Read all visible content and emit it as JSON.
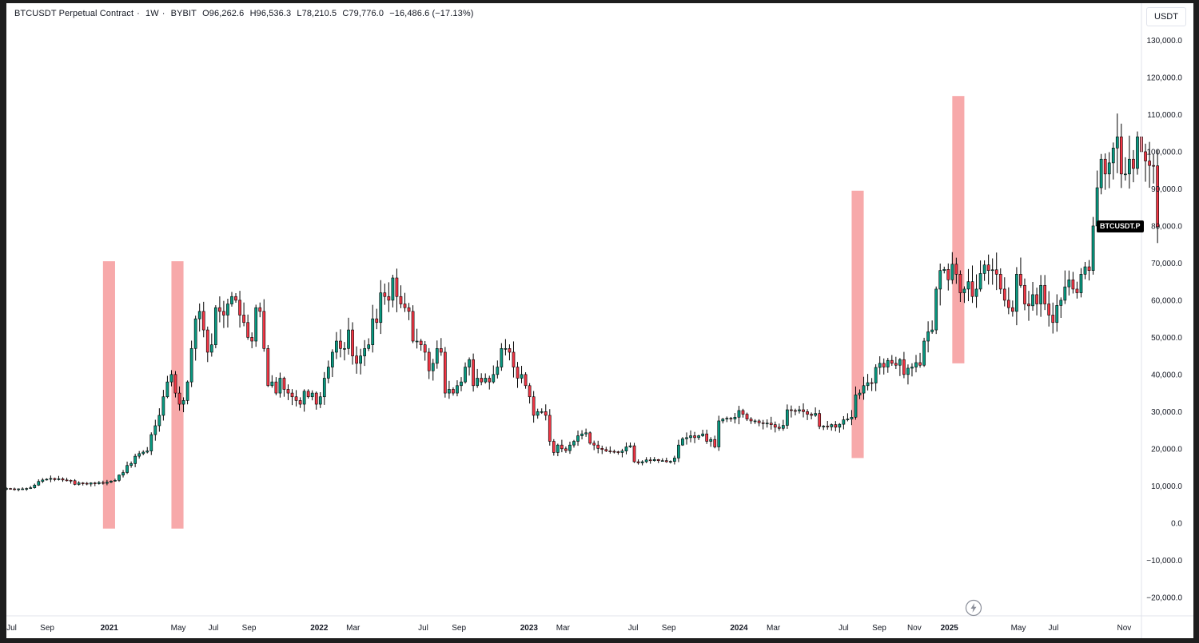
{
  "header": {
    "symbol": "BTCUSDT Perpetual Contract",
    "interval": "1W",
    "exchange": "BYBIT",
    "open": "O96,262.6",
    "high": "H96,536.3",
    "low": "L78,210.5",
    "close": "C79,776.0",
    "change": "−16,486.6 (−17.13%)"
  },
  "currency_button": "USDT",
  "price_tag": {
    "label": "BTCUSDT.P",
    "value": 79776
  },
  "colors": {
    "up": "#089981",
    "down": "#f23645",
    "candle_up_fill": "#089981",
    "candle_down_fill": "#f23645",
    "highlight": "#f7a9aa",
    "grid": "#e0e3eb"
  },
  "icons": {
    "bolt": "lightning-bolt-icon"
  },
  "chart_data": {
    "type": "candlestick",
    "title": "",
    "xlabel": "",
    "ylabel": "",
    "ylim": [
      -25000,
      140000
    ],
    "grid": false,
    "y_ticks": [
      "130,000.0",
      "120,000.0",
      "110,000.0",
      "100,000.0",
      "90,000.0",
      "80,000.0",
      "70,000.0",
      "60,000.0",
      "50,000.0",
      "40,000.0",
      "30,000.0",
      "20,000.0",
      "10,000.0",
      "0.0",
      "−10,000.0",
      "−20,000.0"
    ],
    "y_tick_values": [
      130000,
      120000,
      110000,
      100000,
      90000,
      80000,
      70000,
      60000,
      50000,
      40000,
      30000,
      20000,
      10000,
      0,
      -10000,
      -20000
    ],
    "x_start": "2020-07-06",
    "x_end": "2025-12-01",
    "x_ticks": [
      {
        "label": "Jul",
        "date": "2020-07-15",
        "bold": false
      },
      {
        "label": "Sep",
        "date": "2020-09-15",
        "bold": false
      },
      {
        "label": "2021",
        "date": "2021-01-01",
        "bold": true
      },
      {
        "label": "May",
        "date": "2021-05-01",
        "bold": false
      },
      {
        "label": "Jul",
        "date": "2021-07-01",
        "bold": false
      },
      {
        "label": "Sep",
        "date": "2021-09-01",
        "bold": false
      },
      {
        "label": "2022",
        "date": "2022-01-01",
        "bold": true
      },
      {
        "label": "Mar",
        "date": "2022-03-01",
        "bold": false
      },
      {
        "label": "Jul",
        "date": "2022-07-01",
        "bold": false
      },
      {
        "label": "Sep",
        "date": "2022-09-01",
        "bold": false
      },
      {
        "label": "2023",
        "date": "2023-01-01",
        "bold": true
      },
      {
        "label": "Mar",
        "date": "2023-03-01",
        "bold": false
      },
      {
        "label": "Jul",
        "date": "2023-07-01",
        "bold": false
      },
      {
        "label": "Sep",
        "date": "2023-09-01",
        "bold": false
      },
      {
        "label": "2024",
        "date": "2024-01-01",
        "bold": true
      },
      {
        "label": "Mar",
        "date": "2024-03-01",
        "bold": false
      },
      {
        "label": "Jul",
        "date": "2024-07-01",
        "bold": false
      },
      {
        "label": "Sep",
        "date": "2024-09-01",
        "bold": false
      },
      {
        "label": "Nov",
        "date": "2024-11-01",
        "bold": false
      },
      {
        "label": "2025",
        "date": "2025-01-01",
        "bold": true
      },
      {
        "label": "May",
        "date": "2025-05-01",
        "bold": false
      },
      {
        "label": "Jul",
        "date": "2025-07-01",
        "bold": false
      },
      {
        "label": "Nov",
        "date": "2025-11-01",
        "bold": false
      }
    ],
    "highlight_zones": [
      {
        "start": "2020-12-21",
        "end": "2021-01-11",
        "low": -1500,
        "high": 70500
      },
      {
        "start": "2021-04-19",
        "end": "2021-05-10",
        "low": -1500,
        "high": 70500
      },
      {
        "start": "2024-07-15",
        "end": "2024-08-05",
        "low": 17500,
        "high": 89500
      },
      {
        "start": "2025-01-06",
        "end": "2025-01-27",
        "low": 43000,
        "high": 115000
      }
    ],
    "series": [
      {
        "name": "BTCUSDT Perpetual Contract",
        "start_date": "2020-07-06",
        "closes": [
          9300,
          9200,
          9100,
          9200,
          9200,
          9300,
          9500,
          10200,
          11200,
          11600,
          11800,
          12000,
          11700,
          11900,
          11600,
          11500,
          11400,
          10400,
          10800,
          10700,
          10500,
          10800,
          10600,
          10900,
          10700,
          11000,
          11300,
          11500,
          12900,
          13600,
          15500,
          16000,
          18000,
          18700,
          19100,
          19400,
          23800,
          26200,
          29000,
          34000,
          38000,
          40000,
          35000,
          32000,
          33000,
          38000,
          47000,
          55000,
          57000,
          52000,
          46000,
          48000,
          58000,
          57000,
          56000,
          59000,
          61000,
          60000,
          56000,
          54000,
          50000,
          49000,
          58000,
          57000,
          47000,
          37000,
          38000,
          35000,
          39000,
          36000,
          35000,
          34000,
          33000,
          32000,
          35500,
          34000,
          35000,
          32000,
          34000,
          39000,
          42000,
          46000,
          49000,
          47000,
          47000,
          52000,
          45000,
          43000,
          45000,
          47000,
          48000,
          55000,
          54000,
          62000,
          61000,
          60000,
          66000,
          61000,
          59000,
          58000,
          57000,
          49000,
          49000,
          48000,
          46000,
          41000,
          43000,
          47000,
          46000,
          35000,
          36000,
          35000,
          37000,
          38000,
          42000,
          44000,
          37000,
          39000,
          38000,
          39000,
          38000,
          40000,
          42000,
          47000,
          47000,
          46000,
          42000,
          39000,
          40000,
          37000,
          34000,
          29000,
          30000,
          30000,
          29000,
          22000,
          19000,
          21000,
          20000,
          19500,
          21000,
          22000,
          23500,
          24000,
          24300,
          21500,
          21000,
          20100,
          19800,
          19400,
          19300,
          19200,
          19000,
          19400,
          20500,
          20800,
          16500,
          16200,
          16500,
          17000,
          16800,
          17100,
          16800,
          16800,
          16500,
          16600,
          17500,
          21000,
          22700,
          23000,
          23500,
          23000,
          23500,
          24000,
          22000,
          22500,
          20500,
          27500,
          28000,
          28200,
          28000,
          28500,
          30300,
          29300,
          28000,
          27500,
          27500,
          27000,
          26800,
          26900,
          26500,
          25800,
          25500,
          26300,
          30500,
          30300,
          30200,
          30500,
          30000,
          29300,
          29000,
          29500,
          26000,
          26100,
          25900,
          26500,
          25800,
          26600,
          27800,
          28000,
          28500,
          34500,
          35000,
          37000,
          37800,
          37700,
          41900,
          43000,
          42000,
          43800,
          43000,
          42500,
          44000,
          40000,
          41700,
          42000,
          43200,
          42500,
          49000,
          51500,
          52000,
          63000,
          68000,
          68300,
          65500,
          69700,
          67000,
          62000,
          63000,
          65000,
          61000,
          63000,
          67200,
          69500,
          68000,
          68200,
          67000,
          63000,
          60000,
          58000,
          57000,
          67000,
          64000,
          59000,
          58500,
          61500,
          59000,
          64000,
          59000,
          56000,
          54000,
          58600,
          60000,
          63600,
          65500,
          63000,
          62000,
          67000,
          69000,
          68000,
          80000,
          90300,
          98000,
          94000,
          97000,
          101000,
          104000,
          94000,
          94000,
          98000,
          95500,
          104000,
          100000,
          97500,
          96300,
          96200,
          79800
        ]
      }
    ]
  }
}
